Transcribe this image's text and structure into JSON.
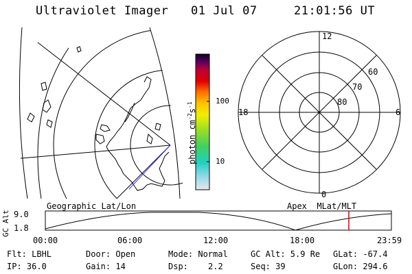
{
  "header": {
    "title": "Ultraviolet Imager",
    "date": "01 Jul 07",
    "time": "21:01:56 UT"
  },
  "colorbar": {
    "label": "photon cm",
    "label_sup1": "-2",
    "label_mid": "s",
    "label_sup2": "-1",
    "tick_100": "100",
    "tick_10": "10"
  },
  "polar": {
    "mlt_12": "12",
    "mlt_18": "18",
    "mlt_6": "6",
    "mlt_0": "0",
    "lat_60": "60",
    "lat_70": "70",
    "lat_80": "80"
  },
  "panel_labels": {
    "left": "Geographic Lat/Lon",
    "right": "Apex  MLat/MLT"
  },
  "altplot": {
    "ylabel": "GC Alt",
    "ymax": "9.0",
    "ymin": "1.8",
    "xticks": [
      "00:00",
      "06:00",
      "12:00",
      "18:00",
      "23:59"
    ],
    "marker_time_fraction": 0.877
  },
  "info": {
    "flt": "Flt: LBHL",
    "door": "Door: Open",
    "mode": "Mode: Normal",
    "gcalt": "GC Alt: 5.9 Re",
    "glat": "GLat: -67.4",
    "ip": "IP: 36.0",
    "gain": "Gain: 14",
    "dsp_label": "Dsp:",
    "dsp_value": "2.2",
    "seq": "Seq: 39",
    "glon": "GLon: 294.6"
  },
  "colors": {
    "marker": "#e00000"
  }
}
